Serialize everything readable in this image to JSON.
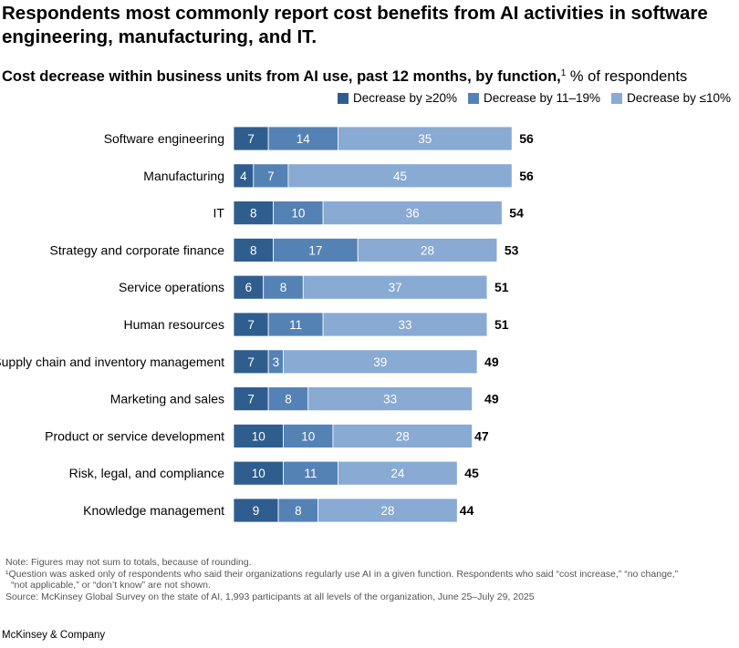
{
  "title": "Respondents most commonly report cost benefits from AI activities in software engineering, manufacturing, and IT.",
  "subtitle": {
    "bold": "Cost decrease within business units from AI use, past 12 months, by function,",
    "sup": "1",
    "rest": " % of respondents"
  },
  "colors": {
    "ge20": "#2f5d8e",
    "r11_19": "#5482b5",
    "le10": "#88aad3"
  },
  "chart_data": {
    "type": "bar",
    "orientation": "horizontal",
    "stacked": true,
    "title": "Cost decrease within business units from AI use, past 12 months, by function",
    "categories": [
      "Software engineering",
      "Manufacturing",
      "IT",
      "Strategy and corporate finance",
      "Service operations",
      "Human resources",
      "Supply chain and inventory management",
      "Marketing and sales",
      "Product or service development",
      "Risk, legal, and compliance",
      "Knowledge management"
    ],
    "series": [
      {
        "name": "Decrease by ≥20%",
        "values": [
          7,
          4,
          8,
          8,
          6,
          7,
          7,
          7,
          10,
          10,
          9
        ]
      },
      {
        "name": "Decrease by 11–19%",
        "values": [
          14,
          7,
          10,
          17,
          8,
          11,
          3,
          8,
          10,
          11,
          8
        ]
      },
      {
        "name": "Decrease by ≤10%",
        "values": [
          35,
          45,
          36,
          28,
          37,
          33,
          39,
          33,
          28,
          24,
          28
        ]
      }
    ],
    "totals": [
      56,
      56,
      54,
      53,
      51,
      51,
      49,
      49,
      47,
      45,
      44
    ],
    "legend_position": "top-right",
    "xlim": [
      0,
      56
    ]
  },
  "footnotes": {
    "note": "Note: Figures may not sum to totals, because of rounding.",
    "fn1_line1": "¹Question was asked only of respondents who said their organizations regularly use AI in a given function. Respondents who said “cost increase,” “no change,”",
    "fn1_line2": "“not applicable,” or “don’t know” are not shown.",
    "source": "Source: McKinsey Global Survey on the state of AI, 1,993 participants at all levels of the organization, June 25–July 29, 2025"
  },
  "brand": "McKinsey & Company"
}
